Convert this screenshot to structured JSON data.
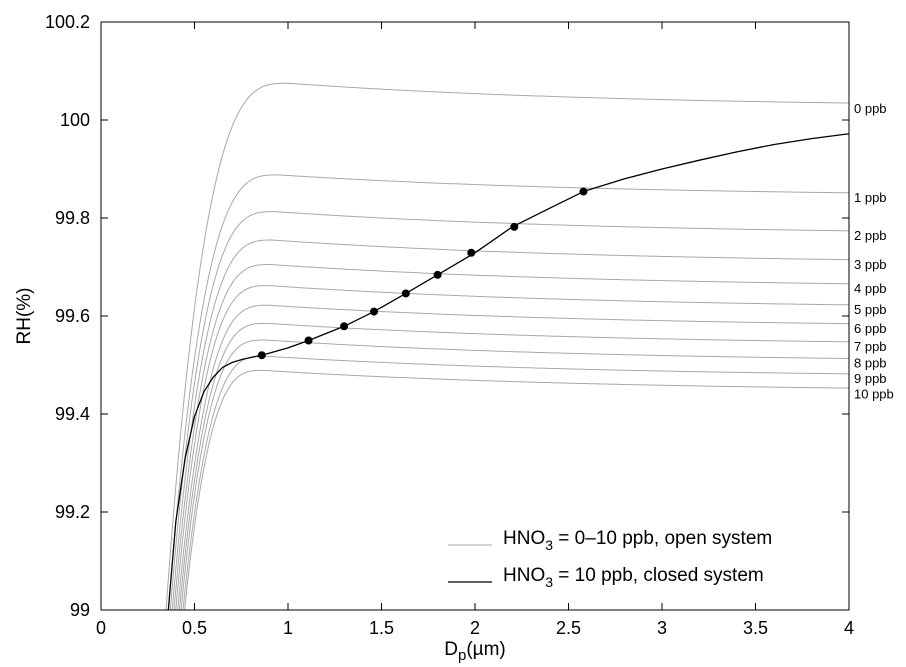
{
  "chart_data": {
    "type": "line",
    "xlabel": "D",
    "xlabel_sub": "p",
    "xlabel_unit": "(µm)",
    "ylabel": "RH(%)",
    "xlim": [
      0,
      4
    ],
    "ylim": [
      99,
      100.2
    ],
    "x_ticks": [
      0,
      0.5,
      1,
      1.5,
      2,
      2.5,
      3,
      3.5,
      4
    ],
    "x_tick_labels": [
      "0",
      "0.5",
      "1",
      "1.5",
      "2",
      "2.5",
      "3",
      "3.5",
      "4"
    ],
    "y_ticks": [
      99,
      99.2,
      99.4,
      99.6,
      99.8,
      100,
      100.2
    ],
    "y_tick_labels": [
      "99",
      "99.2",
      "99.4",
      "99.6",
      "99.8",
      "100",
      "100.2"
    ],
    "grid": false,
    "legend_position": "bottom-right",
    "legend": [
      {
        "prefix": "HNO",
        "sub": "3",
        "suffix": " = 0–10 ppb, open system",
        "color": "#a8a8a8"
      },
      {
        "prefix": "HNO",
        "sub": "3",
        "suffix": " = 10 ppb, closed system",
        "color": "#000000"
      }
    ],
    "open_system_series": [
      {
        "name": "0 ppb",
        "label": "0 ppb",
        "end_value": 100.025,
        "peak_x": 1.0,
        "peak_y": 100.075,
        "color": "#a8a8a8"
      },
      {
        "name": "1 ppb",
        "label": "1 ppb",
        "end_value": 99.843,
        "peak_x": 0.95,
        "peak_y": 99.888,
        "color": "#a8a8a8"
      },
      {
        "name": "2 ppb",
        "label": "2 ppb",
        "end_value": 99.765,
        "peak_x": 0.93,
        "peak_y": 99.813,
        "color": "#a8a8a8"
      },
      {
        "name": "3 ppb",
        "label": "3 ppb",
        "end_value": 99.706,
        "peak_x": 0.92,
        "peak_y": 99.755,
        "color": "#a8a8a8"
      },
      {
        "name": "4 ppb",
        "label": "4 ppb",
        "end_value": 99.657,
        "peak_x": 0.91,
        "peak_y": 99.705,
        "color": "#a8a8a8"
      },
      {
        "name": "5 ppb",
        "label": "5 ppb",
        "end_value": 99.614,
        "peak_x": 0.9,
        "peak_y": 99.662,
        "color": "#a8a8a8"
      },
      {
        "name": "6 ppb",
        "label": "6 ppb",
        "end_value": 99.576,
        "peak_x": 0.9,
        "peak_y": 99.622,
        "color": "#a8a8a8"
      },
      {
        "name": "7 ppb",
        "label": "7 ppb",
        "end_value": 99.539,
        "peak_x": 0.89,
        "peak_y": 99.585,
        "color": "#a8a8a8"
      },
      {
        "name": "8 ppb",
        "label": "8 ppb",
        "end_value": 99.505,
        "peak_x": 0.88,
        "peak_y": 99.551,
        "color": "#a8a8a8"
      },
      {
        "name": "9 ppb",
        "label": "9 ppb",
        "end_value": 99.474,
        "peak_x": 0.88,
        "peak_y": 99.518,
        "color": "#a8a8a8"
      },
      {
        "name": "10 ppb",
        "label": "10 ppb",
        "end_value": 99.445,
        "peak_x": 0.87,
        "peak_y": 99.489,
        "color": "#a8a8a8"
      }
    ],
    "closed_system_series": {
      "name": "HNO3 = 10 ppb, closed system",
      "color": "#000000",
      "x": [
        0.36,
        0.4,
        0.45,
        0.5,
        0.55,
        0.6,
        0.65,
        0.7,
        0.76,
        0.86,
        1.0,
        1.11,
        1.3,
        1.46,
        1.63,
        1.8,
        2.0,
        2.2,
        2.4,
        2.58,
        2.8,
        3.0,
        3.2,
        3.4,
        3.6,
        3.8,
        4.0
      ],
      "y": [
        99.0,
        99.18,
        99.31,
        99.395,
        99.445,
        99.475,
        99.495,
        99.505,
        99.512,
        99.52,
        99.535,
        99.55,
        99.579,
        99.609,
        99.646,
        99.684,
        99.729,
        99.782,
        99.82,
        99.854,
        99.88,
        99.9,
        99.918,
        99.935,
        99.95,
        99.962,
        99.972
      ]
    },
    "intersection_points": [
      {
        "x": 0.86,
        "y": 99.52
      },
      {
        "x": 1.11,
        "y": 99.55
      },
      {
        "x": 1.3,
        "y": 99.579
      },
      {
        "x": 1.46,
        "y": 99.609
      },
      {
        "x": 1.63,
        "y": 99.646
      },
      {
        "x": 1.8,
        "y": 99.684
      },
      {
        "x": 1.98,
        "y": 99.729
      },
      {
        "x": 2.21,
        "y": 99.782
      },
      {
        "x": 2.58,
        "y": 99.854
      }
    ]
  }
}
